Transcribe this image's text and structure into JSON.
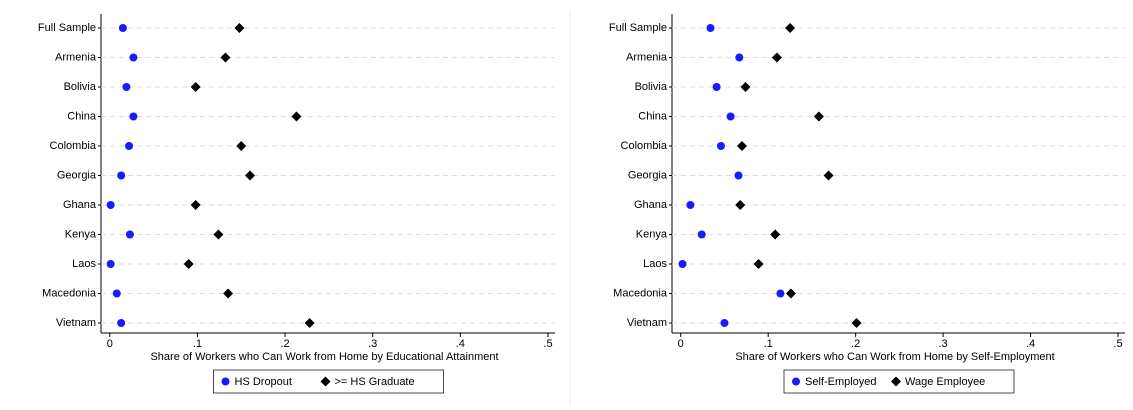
{
  "chart_data": [
    {
      "type": "dot",
      "categories": [
        "Full Sample",
        "Armenia",
        "Bolivia",
        "China",
        "Colombia",
        "Georgia",
        "Ghana",
        "Kenya",
        "Laos",
        "Macedonia",
        "Vietnam"
      ],
      "series": [
        {
          "name": "HS Dropout",
          "color": "#1a1aff",
          "marker": "circle",
          "values": [
            0.015,
            0.027,
            0.019,
            0.027,
            0.022,
            0.013,
            0.001,
            0.023,
            0.001,
            0.008,
            0.013
          ]
        },
        {
          "name": ">= HS Graduate",
          "color": "#000000",
          "marker": "diamond",
          "values": [
            0.148,
            0.132,
            0.098,
            0.213,
            0.15,
            0.16,
            0.098,
            0.124,
            0.09,
            0.135,
            0.228
          ]
        }
      ],
      "xlabel": "Share of Workers who Can Work from Home by Educational Attainment",
      "xlim": [
        -0.01,
        0.5
      ],
      "xticks": [
        0,
        {
          "value": 0.1,
          "label": ".1"
        },
        {
          "value": 0.2,
          "label": ".2"
        },
        {
          "value": 0.3,
          "label": ".3"
        },
        {
          "value": 0.4,
          "label": ".4"
        },
        {
          "value": 0.5,
          "label": ".5"
        }
      ],
      "grid": true,
      "legend": "bottom"
    },
    {
      "type": "dot",
      "categories": [
        "Full Sample",
        "Armenia",
        "Bolivia",
        "China",
        "Colombia",
        "Georgia",
        "Ghana",
        "Kenya",
        "Laos",
        "Macedonia",
        "Vietnam"
      ],
      "series": [
        {
          "name": "Self-Employed",
          "color": "#1a1aff",
          "marker": "circle",
          "values": [
            0.034,
            0.067,
            0.041,
            0.057,
            0.046,
            0.066,
            0.011,
            0.024,
            0.002,
            0.114,
            0.05
          ]
        },
        {
          "name": "Wage Employee",
          "color": "#000000",
          "marker": "diamond",
          "values": [
            0.125,
            0.11,
            0.074,
            0.158,
            0.07,
            0.169,
            0.068,
            0.108,
            0.089,
            0.126,
            0.201
          ]
        }
      ],
      "xlabel": "Share of Workers who Can Work from Home by Self-Employment",
      "xlim": [
        -0.01,
        0.5
      ],
      "xticks": [
        0,
        {
          "value": 0.1,
          "label": ".1"
        },
        {
          "value": 0.2,
          "label": ".2"
        },
        {
          "value": 0.3,
          "label": ".3"
        },
        {
          "value": 0.4,
          "label": ".4"
        },
        {
          "value": 0.5,
          "label": ".5"
        }
      ],
      "grid": true,
      "legend": "bottom"
    }
  ]
}
